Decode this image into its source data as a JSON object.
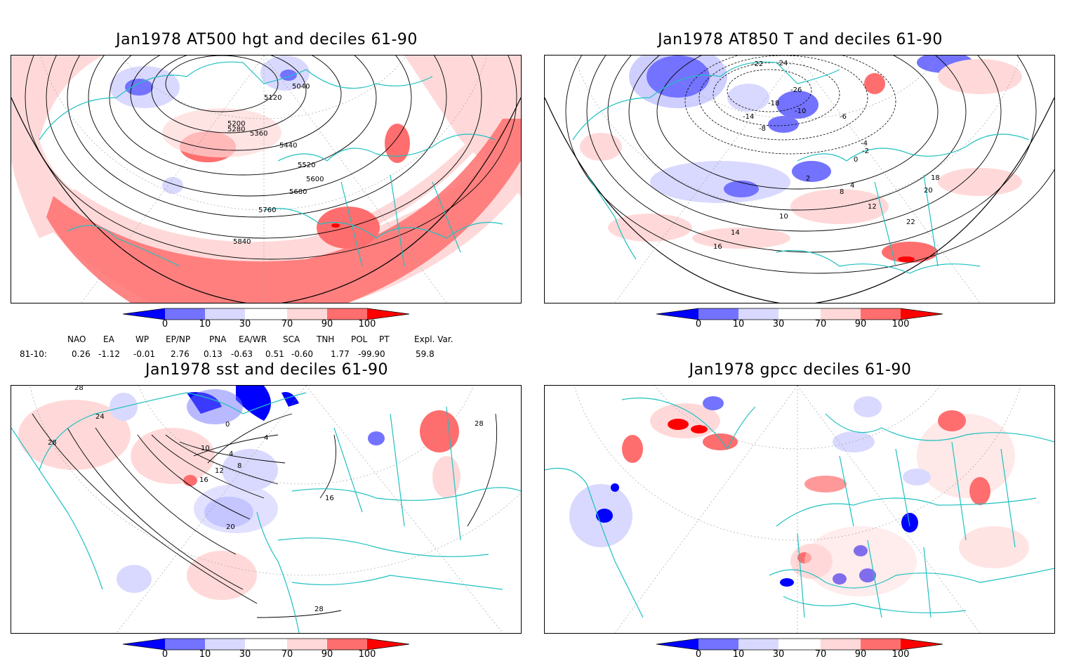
{
  "panels": [
    {
      "title": "Jan1978 AT500 hgt and deciles 61-90",
      "contour_labels": [
        "5040",
        "5120",
        "5200",
        "5280",
        "5360",
        "5440",
        "5520",
        "5600",
        "5680",
        "5760",
        "5840"
      ]
    },
    {
      "title": "Jan1978 AT850 T and deciles 61-90",
      "contour_labels": [
        "-24",
        "-22",
        "-26",
        "-18",
        "-10",
        "-14",
        "-8",
        "-6",
        "-4",
        "-2",
        "0",
        "2",
        "4",
        "8",
        "10",
        "12",
        "14",
        "16",
        "18",
        "20",
        "22"
      ]
    },
    {
      "title": "Jan1978 sst and deciles 61-90",
      "contour_labels": [
        "0",
        "4",
        "8",
        "10",
        "12",
        "16",
        "20",
        "24",
        "28"
      ]
    },
    {
      "title": "Jan1978 gpcc deciles 61-90",
      "contour_labels": []
    }
  ],
  "colorbar": {
    "labels": [
      "0",
      "10",
      "30",
      "70",
      "90",
      "100"
    ],
    "colors": {
      "dark_blue": "#0000ff",
      "mid_blue": "#7373ff",
      "light_blue": "#d9d9ff",
      "white": "#ffffff",
      "light_red": "#ffd9d9",
      "mid_red": "#ff6e6e",
      "dark_red": "#ff0000"
    }
  },
  "indices": {
    "headers": [
      "NAO",
      "EA",
      "WP",
      "EP/NP",
      "PNA",
      "EA/WR",
      "SCA",
      "TNH",
      "POL",
      "PT",
      "Expl. Var."
    ],
    "row_label": "81-10:",
    "values": [
      "0.26",
      "-1.12",
      "-0.01",
      "2.76",
      "0.13",
      "-0.63",
      "0.51",
      "-0.60",
      "1.77",
      "-99.90",
      "59.8"
    ]
  },
  "map_colors": {
    "coast": "#20c0c0",
    "contour": "#000000",
    "grid": "#999999"
  }
}
